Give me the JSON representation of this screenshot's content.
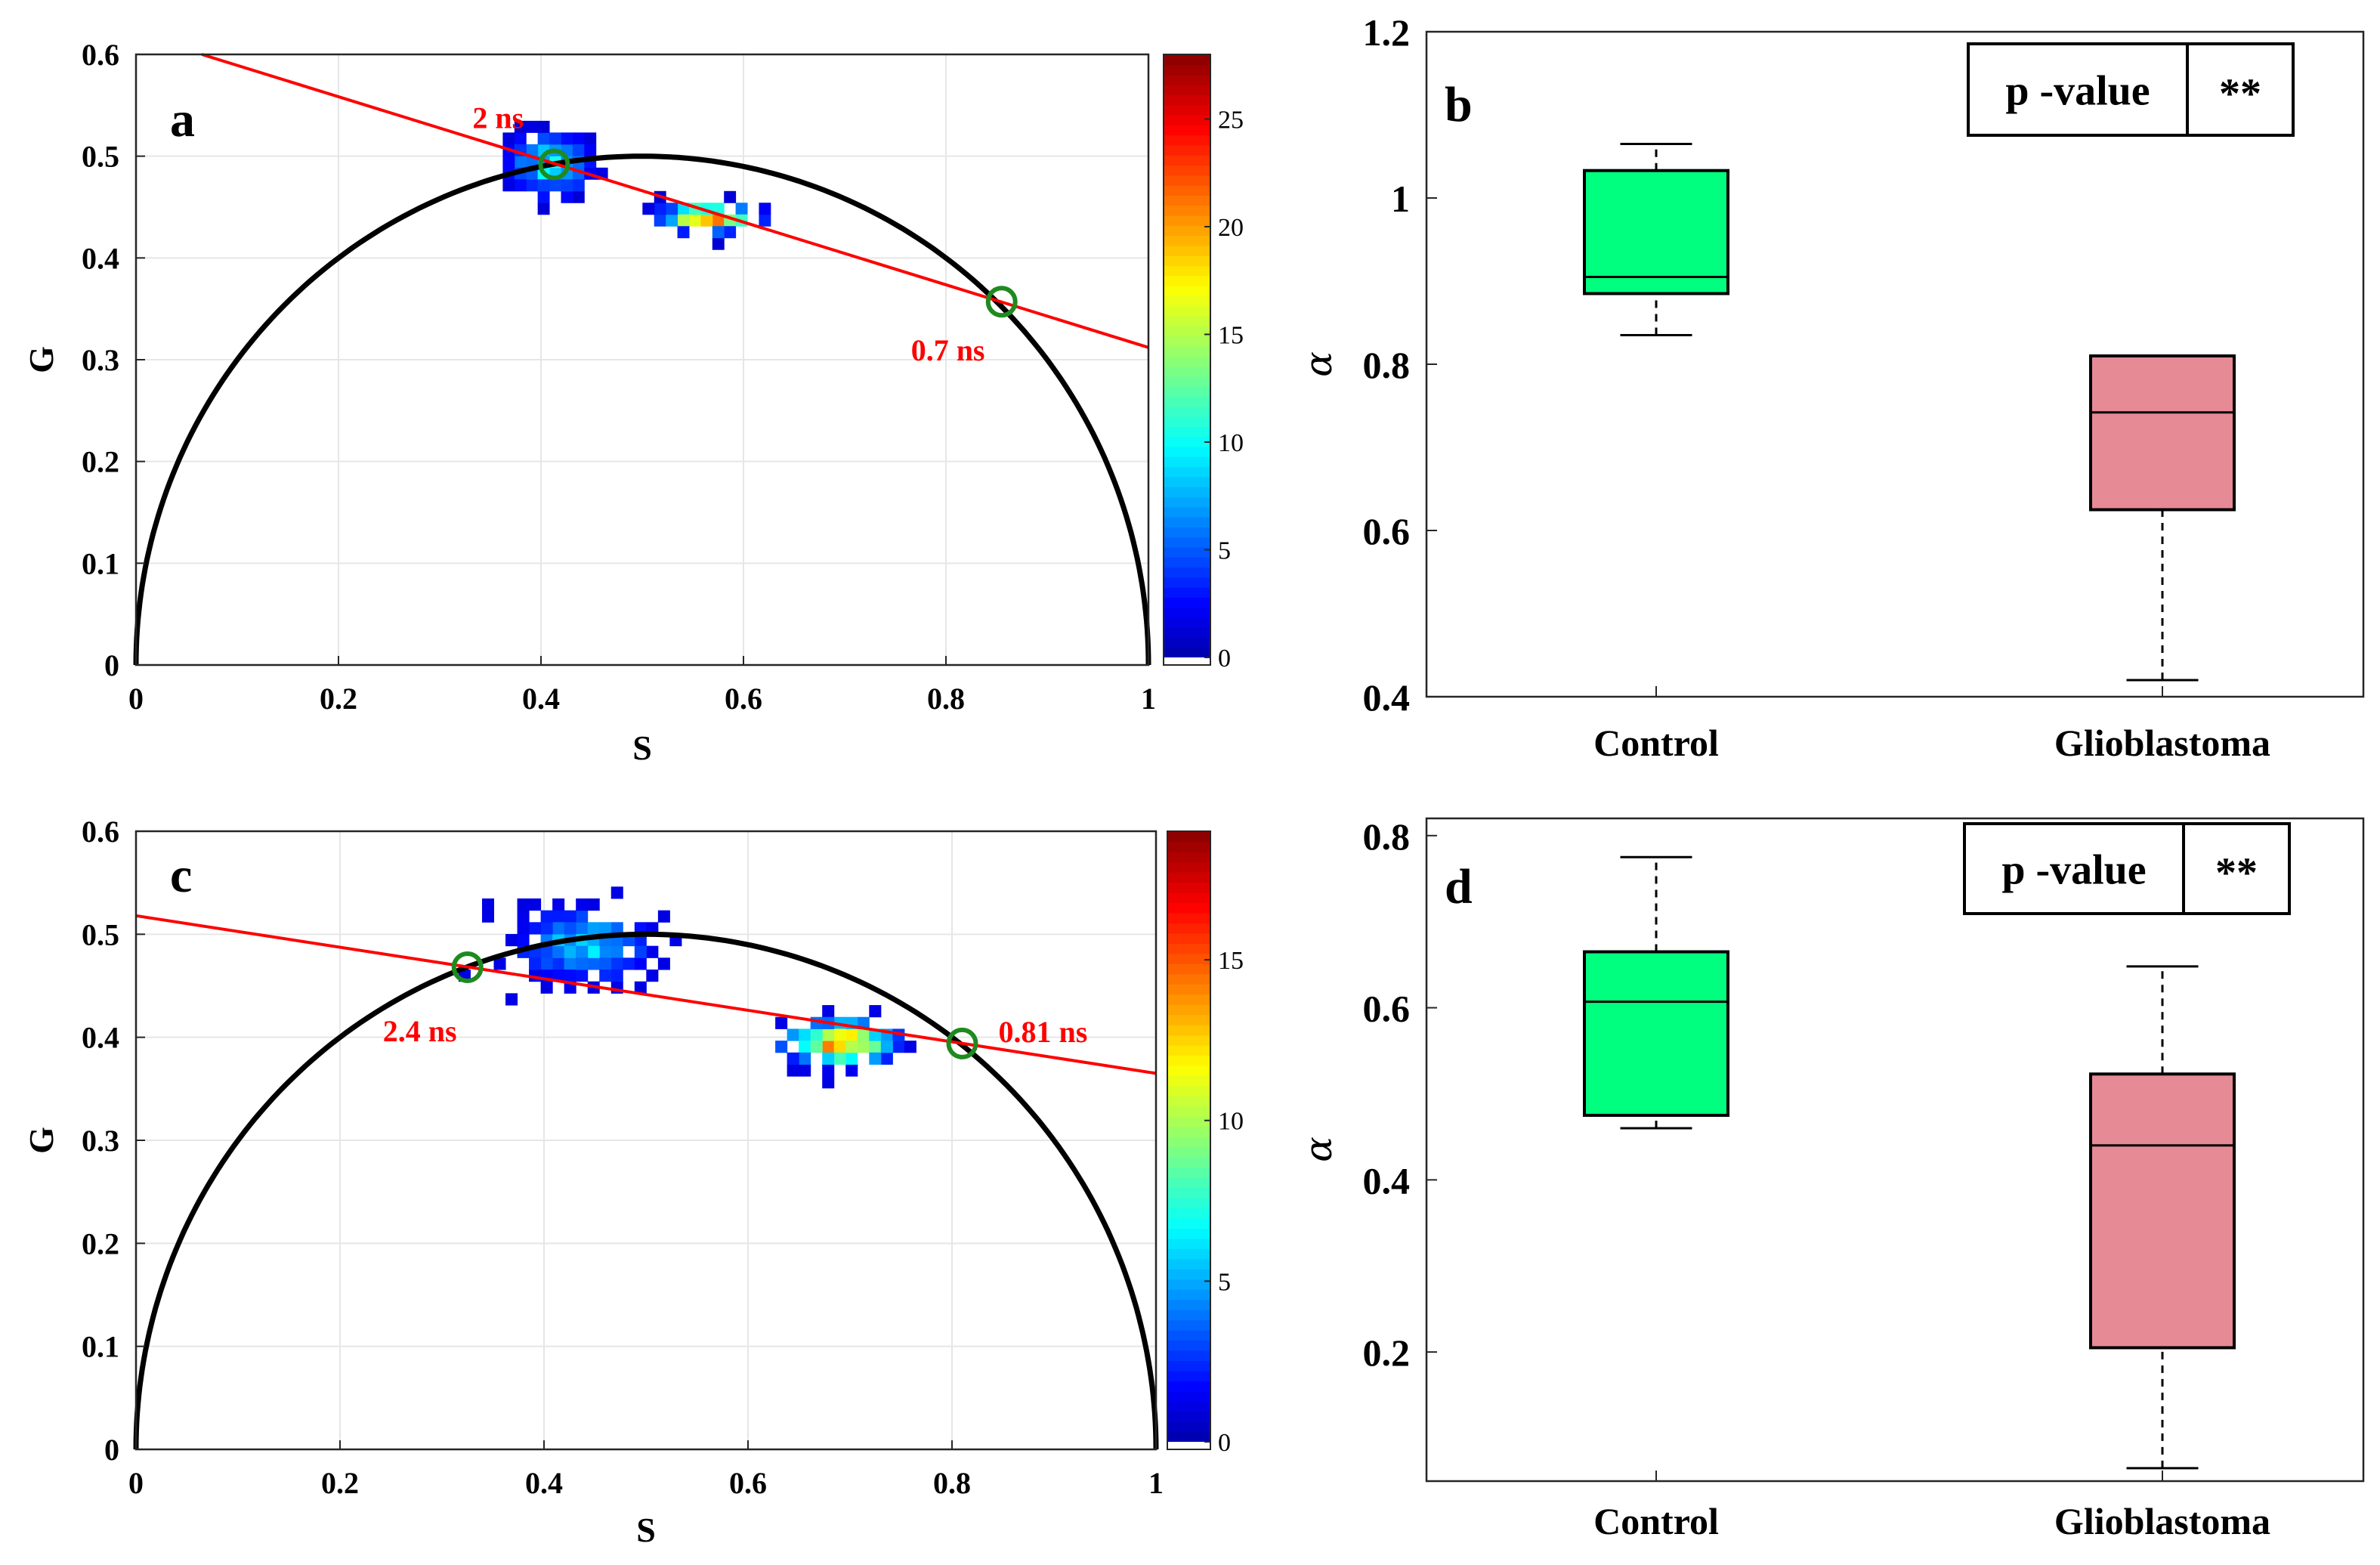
{
  "chart_data": [
    {
      "panel": "a",
      "type": "scatter",
      "subtype": "phasor-plot-2d-histogram",
      "xlabel": "S",
      "ylabel": "G",
      "xlim": [
        0,
        1
      ],
      "ylim": [
        0,
        0.6
      ],
      "xticks": [
        "0",
        "0.2",
        "0.4",
        "0.6",
        "0.8",
        "1"
      ],
      "yticks": [
        "0",
        "0.1",
        "0.2",
        "0.3",
        "0.4",
        "0.5",
        "0.6"
      ],
      "grid": true,
      "semicircle": {
        "center_s": 0.5,
        "radius": 0.5
      },
      "fit_line": {
        "x": [
          0.065,
          1.0
        ],
        "y": [
          0.6,
          0.312
        ],
        "color": "#ff0000"
      },
      "lifetime_markers": [
        {
          "s": 0.413,
          "g": 0.492,
          "label": "2 ns"
        },
        {
          "s": 0.855,
          "g": 0.357,
          "label": "0.7 ns"
        }
      ],
      "clusters": [
        {
          "center": [
            0.41,
            0.492
          ],
          "spread": [
            0.04,
            0.03
          ],
          "count": 120,
          "peak": 12
        },
        {
          "center": [
            0.565,
            0.44
          ],
          "spread": [
            0.045,
            0.013
          ],
          "count": 70,
          "peak": 25
        }
      ],
      "colorbar": {
        "min": 0,
        "max": 28,
        "ticks": [
          "0",
          "5",
          "10",
          "15",
          "20",
          "25"
        ]
      }
    },
    {
      "panel": "b",
      "type": "box",
      "ylabel": "α",
      "ylim": [
        0.4,
        1.2
      ],
      "yticks": [
        "0.4",
        "0.6",
        "0.8",
        "1",
        "1.2"
      ],
      "categories": [
        "Control",
        "Glioblastoma"
      ],
      "boxes": [
        {
          "name": "Control",
          "whisker_low": 0.835,
          "q1": 0.885,
          "median": 0.905,
          "q3": 1.033,
          "whisker_high": 1.065,
          "color": "#00ff7f"
        },
        {
          "name": "Glioblastoma",
          "whisker_low": 0.42,
          "q1": 0.625,
          "median": 0.742,
          "q3": 0.81,
          "whisker_high": 0.81,
          "color": "#e68a96"
        }
      ],
      "table": {
        "header": "p -value",
        "value": "**"
      }
    },
    {
      "panel": "c",
      "type": "scatter",
      "subtype": "phasor-plot-2d-histogram",
      "xlabel": "S",
      "ylabel": "G",
      "xlim": [
        0,
        1
      ],
      "ylim": [
        0,
        0.6
      ],
      "xticks": [
        "0",
        "0.2",
        "0.4",
        "0.6",
        "0.8",
        "1"
      ],
      "yticks": [
        "0",
        "0.1",
        "0.2",
        "0.3",
        "0.4",
        "0.5",
        "0.6"
      ],
      "grid": true,
      "semicircle": {
        "center_s": 0.5,
        "radius": 0.5
      },
      "fit_line": {
        "x": [
          0.0,
          1.0
        ],
        "y": [
          0.518,
          0.365
        ],
        "color": "#ff0000"
      },
      "lifetime_markers": [
        {
          "s": 0.325,
          "g": 0.468,
          "label": "2.4 ns"
        },
        {
          "s": 0.81,
          "g": 0.394,
          "label": "0.81 ns"
        }
      ],
      "clusters": [
        {
          "center": [
            0.44,
            0.49
          ],
          "spread": [
            0.065,
            0.035
          ],
          "count": 160,
          "peak": 7
        },
        {
          "center": [
            0.69,
            0.395
          ],
          "spread": [
            0.05,
            0.02
          ],
          "count": 110,
          "peak": 18
        }
      ],
      "colorbar": {
        "min": 0,
        "max": 19,
        "ticks": [
          "0",
          "5",
          "10",
          "15"
        ]
      }
    },
    {
      "panel": "d",
      "type": "box",
      "ylabel": "α",
      "ylim": [
        0.05,
        0.82
      ],
      "yticks": [
        "0.2",
        "0.4",
        "0.6",
        "0.8"
      ],
      "categories": [
        "Control",
        "Glioblastoma"
      ],
      "boxes": [
        {
          "name": "Control",
          "whisker_low": 0.46,
          "q1": 0.475,
          "median": 0.607,
          "q3": 0.665,
          "whisker_high": 0.775,
          "color": "#00ff7f"
        },
        {
          "name": "Glioblastoma",
          "whisker_low": 0.065,
          "q1": 0.205,
          "median": 0.44,
          "q3": 0.523,
          "whisker_high": 0.648,
          "color": "#e68a96"
        }
      ],
      "table": {
        "header": "p -value",
        "value": "**"
      }
    }
  ]
}
